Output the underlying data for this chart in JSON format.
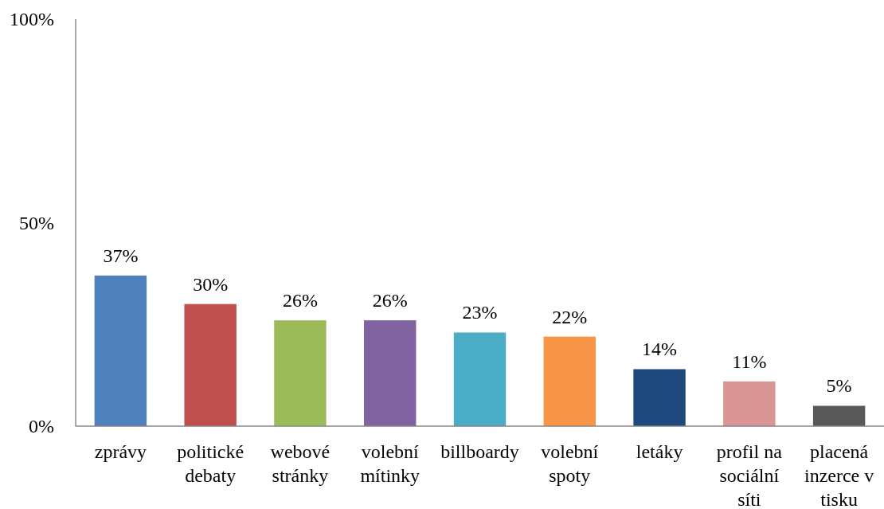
{
  "chart_data": {
    "type": "bar",
    "categories": [
      "zprávy",
      "politické debaty",
      "webové stránky",
      "volební mítinky",
      "billboardy",
      "volební spoty",
      "letáky",
      "profil na sociální síti",
      "placená inzerce v tisku"
    ],
    "values": [
      37,
      30,
      26,
      26,
      23,
      22,
      14,
      11,
      5
    ],
    "colors": [
      "#4f81bd",
      "#c0504d",
      "#9bbb59",
      "#8064a2",
      "#4bacc6",
      "#f79646",
      "#1f497d",
      "#d99694",
      "#595959"
    ],
    "value_labels": [
      "37%",
      "30%",
      "26%",
      "26%",
      "23%",
      "22%",
      "14%",
      "11%",
      "5%"
    ],
    "ylim": [
      0,
      100
    ],
    "yticks": [
      {
        "value": 0,
        "label": "0%"
      },
      {
        "value": 50,
        "label": "50%"
      },
      {
        "value": 100,
        "label": "100%"
      }
    ]
  }
}
